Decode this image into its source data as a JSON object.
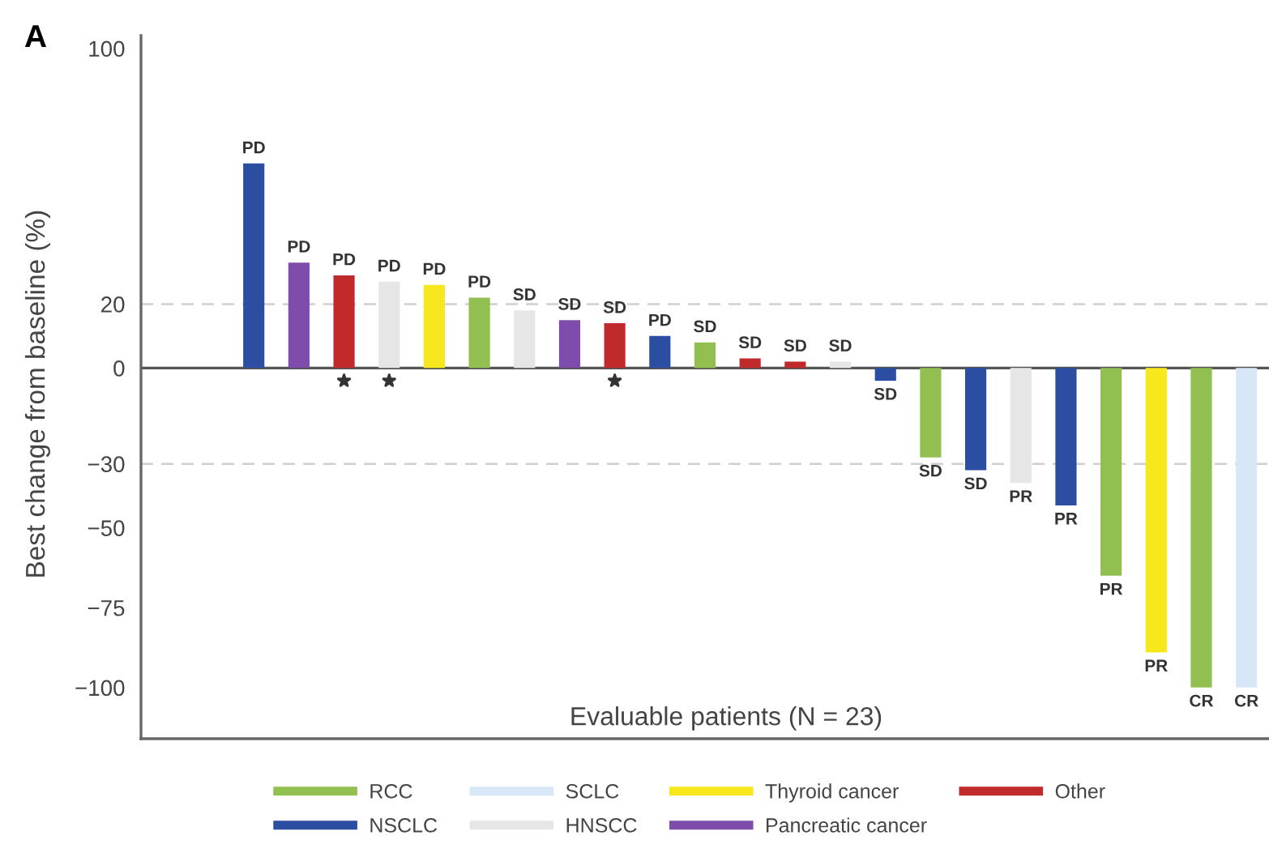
{
  "chart_data": {
    "type": "bar",
    "title": "A",
    "xlabel": "Evaluable patients (N = 23)",
    "ylabel": "Best change from baseline (%)",
    "categories": [
      null,
      null,
      null,
      null,
      null,
      null,
      null,
      null,
      null,
      null,
      null,
      null,
      null,
      null,
      null,
      null,
      null,
      null,
      null,
      null,
      null,
      null,
      null,
      null,
      null
    ],
    "ylim": [
      -116,
      104
    ],
    "yticks": [
      {
        "value": -100,
        "label": "−100"
      },
      {
        "value": -75,
        "label": "−75"
      },
      {
        "value": -50,
        "label": "−50"
      },
      {
        "value": -30,
        "label": "−30"
      },
      0,
      20,
      100
    ],
    "series": [
      {
        "name": "RCC",
        "color": "#92c050",
        "values": [
          null,
          null,
          null,
          null,
          null,
          null,
          null,
          22,
          null,
          null,
          null,
          null,
          8,
          null,
          null,
          null,
          null,
          -28,
          null,
          null,
          null,
          -65,
          null,
          -100,
          null
        ],
        "value_labels": [
          null,
          null,
          null,
          null,
          null,
          null,
          null,
          "PD",
          null,
          null,
          null,
          null,
          "SD",
          null,
          null,
          null,
          null,
          "SD",
          null,
          null,
          null,
          "PR",
          null,
          "CR",
          null
        ]
      },
      {
        "name": "NSCLC",
        "color": "#2b4ea2",
        "values": [
          null,
          null,
          64,
          null,
          null,
          null,
          null,
          null,
          null,
          null,
          null,
          10,
          null,
          null,
          null,
          null,
          -4,
          null,
          -32,
          null,
          -43,
          null,
          null,
          null,
          null
        ],
        "value_labels": [
          null,
          null,
          "PD",
          null,
          null,
          null,
          null,
          null,
          null,
          null,
          null,
          "PD",
          null,
          null,
          null,
          null,
          "SD",
          null,
          "SD",
          null,
          "PR",
          null,
          null,
          null,
          null
        ]
      },
      {
        "name": "SCLC",
        "color": "#d8e7f7",
        "values": [
          null,
          null,
          null,
          null,
          null,
          null,
          null,
          null,
          null,
          null,
          null,
          null,
          null,
          null,
          null,
          null,
          null,
          null,
          null,
          null,
          null,
          null,
          null,
          null,
          -100
        ],
        "value_labels": [
          null,
          null,
          null,
          null,
          null,
          null,
          null,
          null,
          null,
          null,
          null,
          null,
          null,
          null,
          null,
          null,
          null,
          null,
          null,
          null,
          null,
          null,
          null,
          null,
          "CR"
        ]
      },
      {
        "name": "HNSCC",
        "color": "#e6e6e6",
        "values": [
          null,
          null,
          null,
          null,
          null,
          27,
          null,
          null,
          18,
          null,
          null,
          null,
          null,
          null,
          null,
          2,
          null,
          null,
          null,
          -36,
          null,
          null,
          null,
          null,
          null
        ],
        "value_labels": [
          null,
          null,
          null,
          null,
          null,
          "PD",
          null,
          null,
          "SD",
          null,
          null,
          null,
          null,
          null,
          null,
          "SD",
          null,
          null,
          null,
          "PR",
          null,
          null,
          null,
          null,
          null
        ]
      },
      {
        "name": "Thyroid cancer",
        "color": "#f6e81c",
        "values": [
          null,
          null,
          null,
          null,
          null,
          null,
          26,
          null,
          null,
          null,
          null,
          null,
          null,
          null,
          null,
          null,
          null,
          null,
          null,
          null,
          null,
          null,
          -89,
          null,
          null
        ],
        "value_labels": [
          null,
          null,
          null,
          null,
          null,
          null,
          "PD",
          null,
          null,
          null,
          null,
          null,
          null,
          null,
          null,
          null,
          null,
          null,
          null,
          null,
          null,
          null,
          "PR",
          null,
          null
        ]
      },
      {
        "name": "Pancreatic cancer",
        "color": "#7e4dab",
        "values": [
          null,
          null,
          null,
          33,
          null,
          null,
          null,
          null,
          null,
          15,
          null,
          null,
          null,
          null,
          null,
          null,
          null,
          null,
          null,
          null,
          null,
          null,
          null,
          null,
          null
        ],
        "value_labels": [
          null,
          null,
          null,
          "PD",
          null,
          null,
          null,
          null,
          null,
          "SD",
          null,
          null,
          null,
          null,
          null,
          null,
          null,
          null,
          null,
          null,
          null,
          null,
          null,
          null,
          null
        ]
      },
      {
        "name": "Other",
        "color": "#c02a2a",
        "values": [
          null,
          null,
          null,
          null,
          29,
          null,
          null,
          null,
          null,
          null,
          14,
          null,
          null,
          3,
          2,
          null,
          null,
          null,
          null,
          null,
          null,
          null,
          null,
          null,
          null
        ],
        "value_labels": [
          null,
          null,
          null,
          null,
          "PD",
          null,
          null,
          null,
          null,
          null,
          "SD",
          null,
          null,
          "SD",
          "SD",
          null,
          null,
          null,
          null,
          null,
          null,
          null,
          null,
          null,
          null
        ]
      },
      {
        "type": "scatter",
        "marker": "star",
        "color": "#333333",
        "values": [
          null,
          null,
          null,
          null,
          -4,
          -4,
          null,
          null,
          null,
          null,
          -4,
          null,
          null,
          null,
          null,
          null,
          null,
          null,
          null,
          null,
          null,
          null,
          null,
          null,
          null
        ]
      }
    ],
    "ref_lines": [
      {
        "axis": "y",
        "value": 20,
        "color": "#cfcfcf",
        "line_style": "dashed"
      },
      {
        "axis": "y",
        "value": -30,
        "color": "#cfcfcf",
        "line_style": "dashed"
      },
      {
        "axis": "y",
        "value": 0,
        "color": "#555555",
        "line_style": "solid"
      }
    ],
    "legend": "bottom"
  }
}
